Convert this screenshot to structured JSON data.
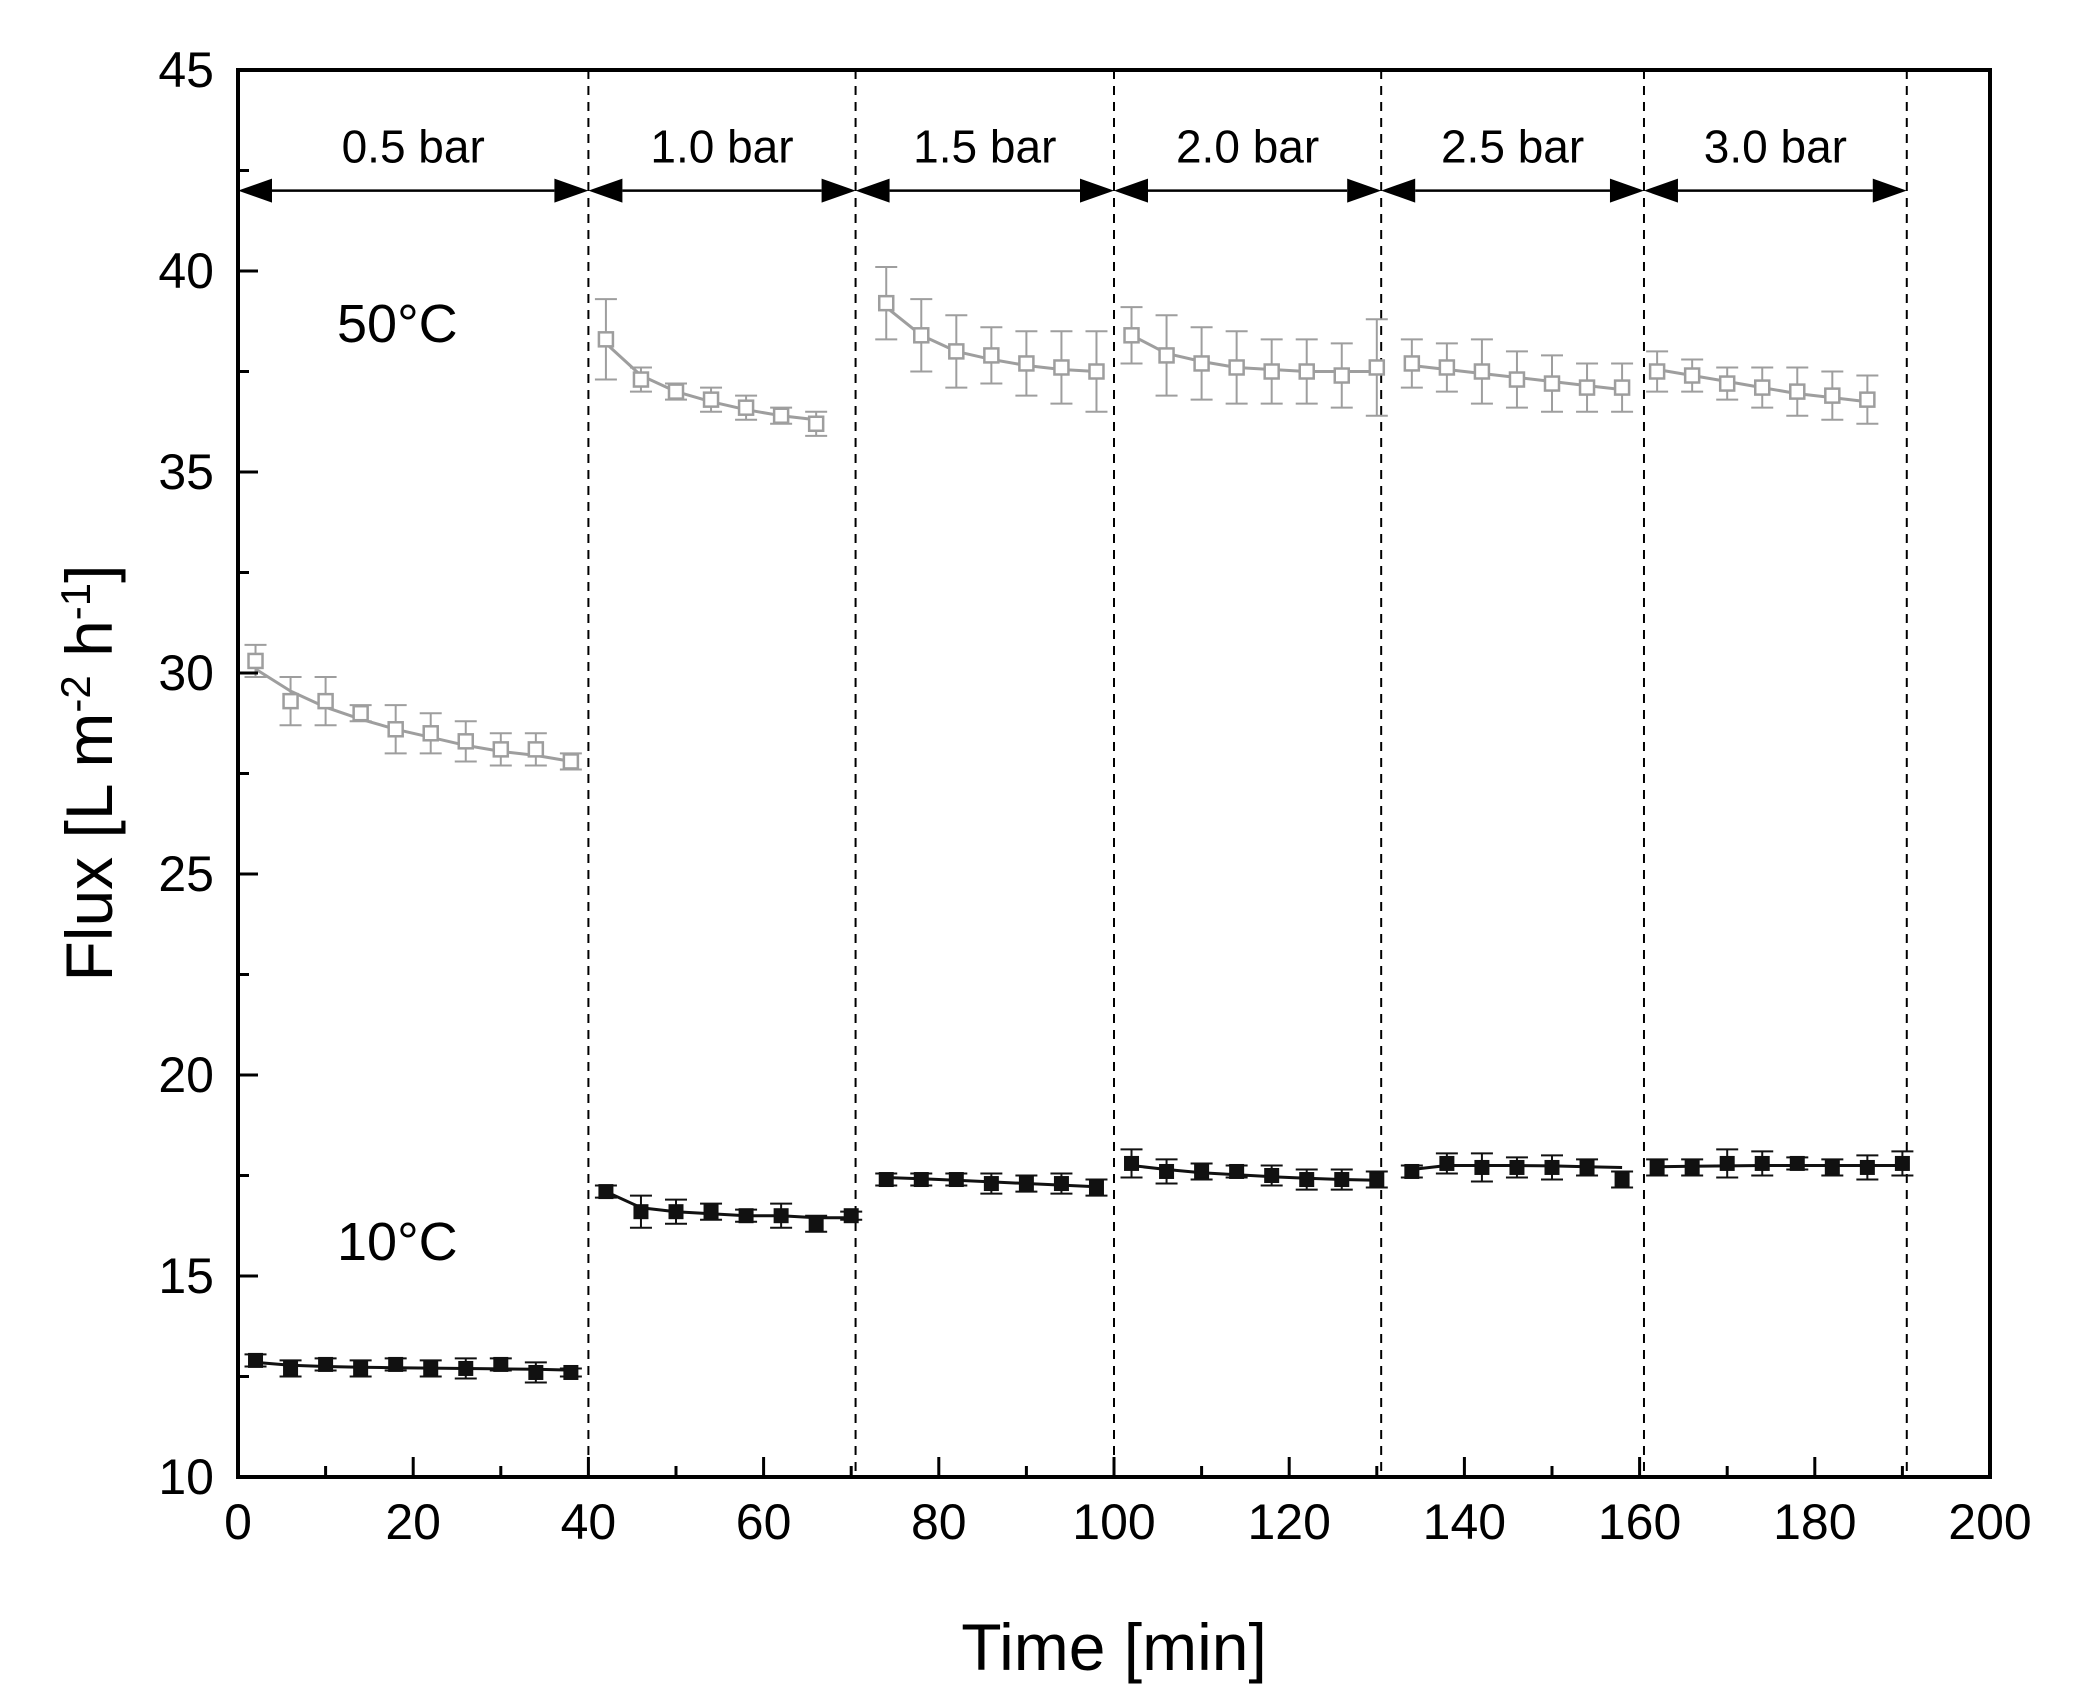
{
  "chart_data": {
    "type": "scatter",
    "xlabel": "Time [min]",
    "ylabel": "Flux [L m-2 h-1]",
    "ylabel_parts": {
      "main": "Flux [L m",
      "sup1": "-2",
      "mid": " h",
      "sup2": "-1",
      "end": "]"
    },
    "xlim": [
      0,
      200
    ],
    "ylim": [
      10,
      45
    ],
    "xticks": [
      "0",
      "20",
      "40",
      "60",
      "80",
      "100",
      "120",
      "140",
      "160",
      "180",
      "200"
    ],
    "yticks": [
      "10",
      "15",
      "20",
      "25",
      "30",
      "35",
      "40",
      "45"
    ],
    "dividers": [
      40,
      70.5,
      100,
      130.5,
      160.5,
      190.5
    ],
    "pressure_segments": [
      {
        "label": "0.5 bar",
        "start": 0,
        "end": 40
      },
      {
        "label": "1.0 bar",
        "start": 40,
        "end": 70.5
      },
      {
        "label": "1.5 bar",
        "start": 70.5,
        "end": 100
      },
      {
        "label": "2.0 bar",
        "start": 100,
        "end": 130.5
      },
      {
        "label": "2.5 bar",
        "start": 130.5,
        "end": 160.5
      },
      {
        "label": "3.0 bar",
        "start": 160.5,
        "end": 190.5
      }
    ],
    "annotations": [
      {
        "text": "50°C",
        "x": 21,
        "y": 39.2
      },
      {
        "text": "10°C",
        "x": 21,
        "y": 16.1
      }
    ],
    "colors": {
      "hot": "#9e9e9e",
      "cold": "#111111",
      "axis": "#000000"
    },
    "series": [
      {
        "name": "50°C",
        "color": "#9e9e9e",
        "segments": [
          {
            "x": [
              2,
              6,
              10,
              14,
              18,
              22,
              26,
              30,
              34,
              38
            ],
            "y": [
              30.3,
              29.3,
              29.3,
              29.0,
              28.6,
              28.5,
              28.3,
              28.1,
              28.1,
              27.8
            ],
            "err": [
              0.4,
              0.6,
              0.6,
              0.2,
              0.6,
              0.5,
              0.5,
              0.4,
              0.4,
              0.2
            ],
            "fit": [
              30.1,
              29.55,
              29.15,
              28.85,
              28.6,
              28.4,
              28.2,
              28.05,
              27.95,
              27.8
            ]
          },
          {
            "x": [
              42,
              46,
              50,
              54,
              58,
              62,
              66
            ],
            "y": [
              38.3,
              37.3,
              37.0,
              36.8,
              36.6,
              36.4,
              36.2
            ],
            "err": [
              1.0,
              0.3,
              0.2,
              0.3,
              0.3,
              0.2,
              0.3
            ],
            "fit": [
              38.2,
              37.4,
              37.0,
              36.75,
              36.55,
              36.4,
              36.3
            ]
          },
          {
            "x": [
              74,
              78,
              82,
              86,
              90,
              94,
              98
            ],
            "y": [
              39.2,
              38.4,
              38.0,
              37.9,
              37.7,
              37.6,
              37.5
            ],
            "err": [
              0.9,
              0.9,
              0.9,
              0.7,
              0.8,
              0.9,
              1.0
            ],
            "fit": [
              39.1,
              38.4,
              38.0,
              37.8,
              37.65,
              37.55,
              37.5
            ]
          },
          {
            "x": [
              102,
              106,
              110,
              114,
              118,
              122,
              126,
              130
            ],
            "y": [
              38.4,
              37.9,
              37.7,
              37.6,
              37.5,
              37.5,
              37.4,
              37.6
            ],
            "err": [
              0.7,
              1.0,
              0.9,
              0.9,
              0.8,
              0.8,
              0.8,
              1.2
            ],
            "fit": [
              38.4,
              37.95,
              37.75,
              37.6,
              37.55,
              37.5,
              37.5,
              37.5
            ]
          },
          {
            "x": [
              134,
              138,
              142,
              146,
              150,
              154,
              158
            ],
            "y": [
              37.7,
              37.6,
              37.5,
              37.3,
              37.2,
              37.1,
              37.1
            ],
            "err": [
              0.6,
              0.6,
              0.8,
              0.7,
              0.7,
              0.6,
              0.6
            ],
            "fit": [
              37.65,
              37.55,
              37.45,
              37.35,
              37.25,
              37.15,
              37.05
            ]
          },
          {
            "x": [
              162,
              166,
              170,
              174,
              178,
              182,
              186
            ],
            "y": [
              37.5,
              37.4,
              37.2,
              37.1,
              37.0,
              36.9,
              36.8
            ],
            "err": [
              0.5,
              0.4,
              0.4,
              0.5,
              0.6,
              0.6,
              0.6
            ],
            "fit": [
              37.55,
              37.4,
              37.25,
              37.1,
              36.95,
              36.85,
              36.75
            ]
          }
        ]
      },
      {
        "name": "10°C",
        "color": "#111111",
        "segments": [
          {
            "x": [
              2,
              6,
              10,
              14,
              18,
              22,
              26,
              30,
              34,
              38
            ],
            "y": [
              12.9,
              12.7,
              12.8,
              12.7,
              12.8,
              12.7,
              12.7,
              12.8,
              12.6,
              12.6
            ],
            "err": [
              0.15,
              0.2,
              0.15,
              0.2,
              0.15,
              0.2,
              0.25,
              0.15,
              0.25,
              0.1
            ],
            "fit": [
              12.85,
              12.78,
              12.75,
              12.73,
              12.72,
              12.71,
              12.7,
              12.69,
              12.68,
              12.66
            ]
          },
          {
            "x": [
              42,
              46,
              50,
              54,
              58,
              62,
              66,
              70
            ],
            "y": [
              17.1,
              16.6,
              16.6,
              16.6,
              16.5,
              16.5,
              16.3,
              16.5
            ],
            "err": [
              0.15,
              0.4,
              0.3,
              0.2,
              0.15,
              0.3,
              0.2,
              0.1
            ],
            "fit": [
              17.1,
              16.7,
              16.6,
              16.55,
              16.5,
              16.5,
              16.45,
              16.45
            ]
          },
          {
            "x": [
              74,
              78,
              82,
              86,
              90,
              94,
              98
            ],
            "y": [
              17.4,
              17.4,
              17.4,
              17.3,
              17.3,
              17.3,
              17.2
            ],
            "err": [
              0.15,
              0.15,
              0.15,
              0.25,
              0.2,
              0.25,
              0.2
            ],
            "fit": [
              17.45,
              17.42,
              17.38,
              17.34,
              17.3,
              17.26,
              17.22
            ]
          },
          {
            "x": [
              102,
              106,
              110,
              114,
              118,
              122,
              126,
              130
            ],
            "y": [
              17.8,
              17.6,
              17.6,
              17.6,
              17.5,
              17.4,
              17.4,
              17.4
            ],
            "err": [
              0.35,
              0.3,
              0.2,
              0.15,
              0.25,
              0.25,
              0.25,
              0.2
            ],
            "fit": [
              17.75,
              17.65,
              17.57,
              17.52,
              17.47,
              17.43,
              17.4,
              17.38
            ]
          },
          {
            "x": [
              134,
              138,
              142,
              146,
              150,
              154,
              158
            ],
            "y": [
              17.6,
              17.8,
              17.7,
              17.7,
              17.7,
              17.7,
              17.4
            ],
            "err": [
              0.15,
              0.25,
              0.35,
              0.25,
              0.3,
              0.2,
              0.2
            ],
            "fit": [
              17.65,
              17.75,
              17.75,
              17.75,
              17.74,
              17.72,
              17.7
            ]
          },
          {
            "x": [
              162,
              166,
              170,
              174,
              178,
              182,
              186,
              190
            ],
            "y": [
              17.7,
              17.7,
              17.8,
              17.8,
              17.8,
              17.7,
              17.7,
              17.8
            ],
            "err": [
              0.2,
              0.2,
              0.35,
              0.3,
              0.15,
              0.2,
              0.3,
              0.3
            ],
            "fit": [
              17.72,
              17.73,
              17.74,
              17.75,
              17.75,
              17.75,
              17.75,
              17.75
            ]
          }
        ]
      }
    ]
  }
}
